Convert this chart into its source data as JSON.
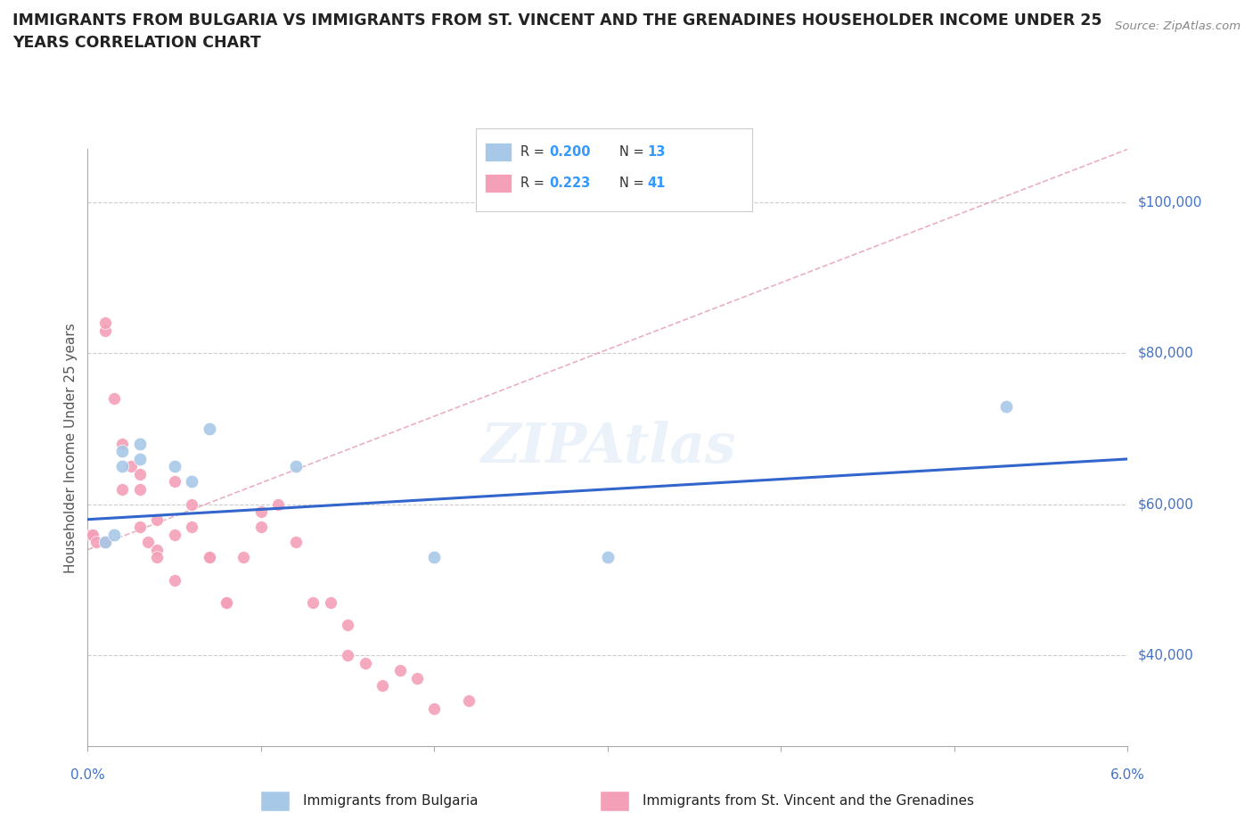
{
  "title_line1": "IMMIGRANTS FROM BULGARIA VS IMMIGRANTS FROM ST. VINCENT AND THE GRENADINES HOUSEHOLDER INCOME UNDER 25",
  "title_line2": "YEARS CORRELATION CHART",
  "source_text": "Source: ZipAtlas.com",
  "ylabel": "Householder Income Under 25 years",
  "xlim": [
    0.0,
    0.06
  ],
  "ylim": [
    28000,
    107000
  ],
  "watermark": "ZIPAtlas",
  "color_bulgaria": "#a8c8e8",
  "color_svg": "#f4a0b8",
  "color_bulgaria_line": "#3366cc",
  "color_svg_line": "#e8a0b8",
  "bulgaria_x": [
    0.001,
    0.0015,
    0.002,
    0.002,
    0.003,
    0.003,
    0.005,
    0.006,
    0.007,
    0.012,
    0.02,
    0.03,
    0.053
  ],
  "bulgaria_y": [
    55000,
    56000,
    65000,
    67000,
    66000,
    68000,
    65000,
    63000,
    70000,
    65000,
    53000,
    53000,
    73000
  ],
  "svg_x": [
    0.0002,
    0.0003,
    0.0005,
    0.001,
    0.001,
    0.001,
    0.0015,
    0.002,
    0.002,
    0.0025,
    0.003,
    0.003,
    0.003,
    0.0035,
    0.004,
    0.004,
    0.004,
    0.005,
    0.005,
    0.005,
    0.006,
    0.006,
    0.007,
    0.007,
    0.008,
    0.008,
    0.009,
    0.01,
    0.01,
    0.011,
    0.012,
    0.013,
    0.014,
    0.015,
    0.015,
    0.016,
    0.017,
    0.018,
    0.019,
    0.02,
    0.022
  ],
  "svg_y": [
    56000,
    56000,
    55000,
    83000,
    84000,
    55000,
    74000,
    68000,
    62000,
    65000,
    62000,
    57000,
    64000,
    55000,
    58000,
    54000,
    53000,
    56000,
    50000,
    63000,
    57000,
    60000,
    53000,
    53000,
    47000,
    47000,
    53000,
    57000,
    59000,
    60000,
    55000,
    47000,
    47000,
    44000,
    40000,
    39000,
    36000,
    38000,
    37000,
    33000,
    34000
  ],
  "bulgaria_trendline_x": [
    0.0,
    0.06
  ],
  "bulgaria_trendline_y": [
    58000,
    66000
  ],
  "svg_trendline_x": [
    0.0,
    0.06
  ],
  "svg_trendline_y": [
    54000,
    107000
  ],
  "svg_trendline_dashed_start": 0.02
}
